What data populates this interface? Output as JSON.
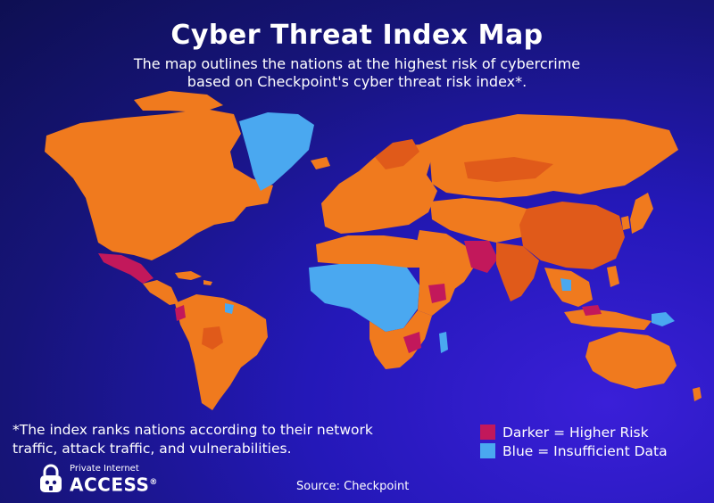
{
  "header": {
    "title": "Cyber Threat Index Map",
    "subtitle_line1": "The map outlines the nations at the highest risk of cybercrime",
    "subtitle_line2": "based on Checkpoint's cyber threat risk index*."
  },
  "footnote": {
    "line1": "*The index ranks nations according to their network",
    "line2": "traffic, attack traffic, and vulnerabilities."
  },
  "legend": [
    {
      "label": "Darker = Higher Risk",
      "color": "#c2185b"
    },
    {
      "label": "Blue = Insufficient Data",
      "color": "#4aa8f0"
    }
  ],
  "colors": {
    "risk": "#f07a1e",
    "higher_risk": "#c2185b",
    "insufficient_data": "#4aa8f0",
    "dark_orange": "#e05a1a"
  },
  "brand": {
    "line1": "Private Internet",
    "line2": "ACCESS",
    "mark": "®",
    "icon": "padlock-robot-icon"
  },
  "source": "Source:  Checkpoint"
}
